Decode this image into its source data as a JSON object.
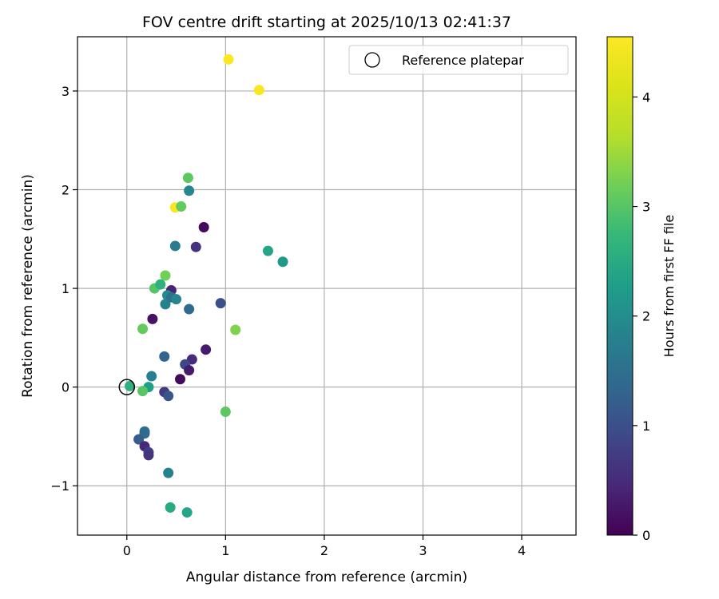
{
  "chart_data": {
    "type": "scatter",
    "title": "FOV centre drift starting at 2025/10/13 02:41:37",
    "xlabel": "Angular distance from reference (arcmin)",
    "ylabel": "Rotation from reference (arcmin)",
    "xlim": [
      -0.5,
      4.55
    ],
    "ylim": [
      -1.5,
      3.55
    ],
    "xticks": [
      0,
      1,
      2,
      3,
      4
    ],
    "xtick_labels": [
      "0",
      "1",
      "2",
      "3",
      "4"
    ],
    "yticks": [
      -1,
      0,
      1,
      2,
      3
    ],
    "ytick_labels": [
      "−1",
      "0",
      "1",
      "2",
      "3"
    ],
    "grid": true,
    "legend": {
      "position": "top-right",
      "label": "Reference platepar",
      "marker": "open-circle"
    },
    "reference_point": {
      "x": 0,
      "y": 0
    },
    "colorbar": {
      "label": "Hours from first FF file",
      "colormap": "viridis",
      "range": [
        0,
        4.55
      ],
      "ticks": [
        0,
        1,
        2,
        3,
        4
      ],
      "tick_labels": [
        "0",
        "1",
        "2",
        "3",
        "4"
      ]
    },
    "points": [
      {
        "x": 1.03,
        "y": 3.32,
        "hours": 4.55
      },
      {
        "x": 1.34,
        "y": 3.01,
        "hours": 4.5
      },
      {
        "x": 0.49,
        "y": 1.82,
        "hours": 4.5
      },
      {
        "x": 0.62,
        "y": 2.12,
        "hours": 3.05
      },
      {
        "x": 0.55,
        "y": 1.83,
        "hours": 3.1
      },
      {
        "x": 0.63,
        "y": 1.99,
        "hours": 1.9
      },
      {
        "x": 0.78,
        "y": 1.62,
        "hours": 0.1
      },
      {
        "x": 0.49,
        "y": 1.43,
        "hours": 1.7
      },
      {
        "x": 0.7,
        "y": 1.42,
        "hours": 0.6
      },
      {
        "x": 1.43,
        "y": 1.38,
        "hours": 2.4
      },
      {
        "x": 1.58,
        "y": 1.27,
        "hours": 2.2
      },
      {
        "x": 0.39,
        "y": 1.13,
        "hours": 3.2
      },
      {
        "x": 0.28,
        "y": 1.0,
        "hours": 3.0
      },
      {
        "x": 0.34,
        "y": 1.04,
        "hours": 2.6
      },
      {
        "x": 0.45,
        "y": 0.98,
        "hours": 0.4
      },
      {
        "x": 0.41,
        "y": 0.93,
        "hours": 2.0
      },
      {
        "x": 0.45,
        "y": 0.91,
        "hours": 1.5
      },
      {
        "x": 0.5,
        "y": 0.89,
        "hours": 1.9
      },
      {
        "x": 0.39,
        "y": 0.84,
        "hours": 1.8
      },
      {
        "x": 0.63,
        "y": 0.79,
        "hours": 1.4
      },
      {
        "x": 0.95,
        "y": 0.85,
        "hours": 1.0
      },
      {
        "x": 0.26,
        "y": 0.69,
        "hours": 0.2
      },
      {
        "x": 0.16,
        "y": 0.59,
        "hours": 3.1
      },
      {
        "x": 1.1,
        "y": 0.58,
        "hours": 3.3
      },
      {
        "x": 0.8,
        "y": 0.38,
        "hours": 0.3
      },
      {
        "x": 0.38,
        "y": 0.31,
        "hours": 1.3
      },
      {
        "x": 0.66,
        "y": 0.28,
        "hours": 0.5
      },
      {
        "x": 0.59,
        "y": 0.23,
        "hours": 0.9
      },
      {
        "x": 0.63,
        "y": 0.17,
        "hours": 0.3
      },
      {
        "x": 0.25,
        "y": 0.11,
        "hours": 1.8
      },
      {
        "x": 0.54,
        "y": 0.08,
        "hours": 0.1
      },
      {
        "x": 0.03,
        "y": 0.01,
        "hours": 2.6
      },
      {
        "x": 0.22,
        "y": 0.0,
        "hours": 2.3
      },
      {
        "x": 0.16,
        "y": -0.04,
        "hours": 3.0
      },
      {
        "x": 0.38,
        "y": -0.05,
        "hours": 0.7
      },
      {
        "x": 0.42,
        "y": -0.09,
        "hours": 1.1
      },
      {
        "x": 1.0,
        "y": -0.25,
        "hours": 3.05
      },
      {
        "x": 0.18,
        "y": -0.45,
        "hours": 1.6
      },
      {
        "x": 0.18,
        "y": -0.47,
        "hours": 1.4
      },
      {
        "x": 0.12,
        "y": -0.53,
        "hours": 1.2
      },
      {
        "x": 0.18,
        "y": -0.6,
        "hours": 0.5
      },
      {
        "x": 0.22,
        "y": -0.66,
        "hours": 0.8
      },
      {
        "x": 0.22,
        "y": -0.69,
        "hours": 0.6
      },
      {
        "x": 0.42,
        "y": -0.87,
        "hours": 1.8
      },
      {
        "x": 0.44,
        "y": -1.22,
        "hours": 2.5
      },
      {
        "x": 0.61,
        "y": -1.27,
        "hours": 2.4
      }
    ]
  }
}
